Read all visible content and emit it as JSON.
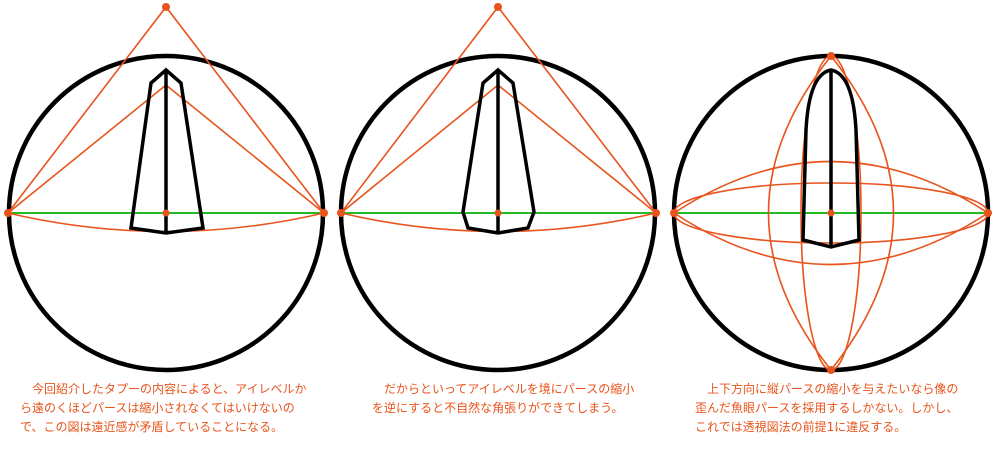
{
  "colors": {
    "circle": "#000000",
    "construction": "#e8541c",
    "horizon": "#22bb22",
    "caption": "#e8541c"
  },
  "captions": [
    {
      "lines": [
        "　今回紹介したタプーの内容によると、アイレベルか",
        "ら遠のくほどパースは縮小されなくてはいけないの",
        "で、この図は遠近感が矛盾していることになる。"
      ]
    },
    {
      "lines": [
        "　だからといってアイレベルを境にパースの縮小",
        "を逆にすると不自然な角張りができてしまう。"
      ]
    },
    {
      "lines": [
        "　上下方向に縦パースの縮小を与えたいなら像の",
        "歪んだ魚眼パースを採用するしかない。しかし、",
        "これでは透視図法の前提1に違反する。"
      ]
    }
  ]
}
